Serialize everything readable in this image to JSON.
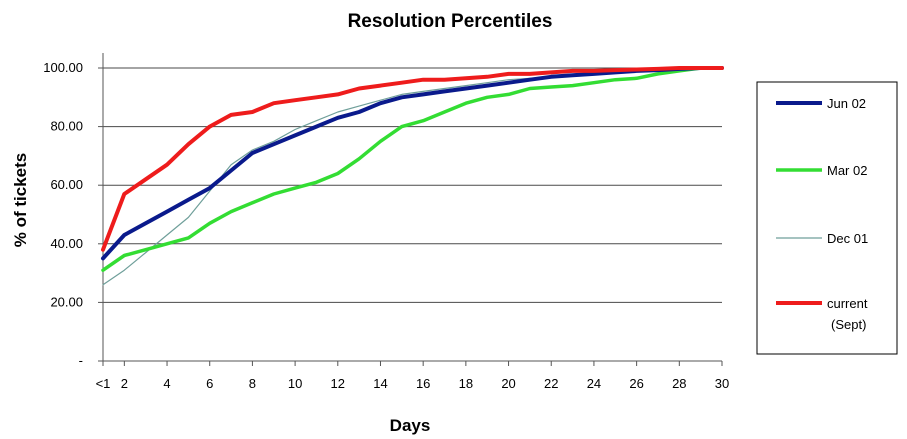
{
  "chart_data": {
    "type": "line",
    "title": "Resolution Percentiles",
    "xlabel": "Days",
    "ylabel": "% of tickets",
    "x_tick_labels": [
      "<1",
      "2",
      "4",
      "6",
      "8",
      "10",
      "12",
      "14",
      "16",
      "18",
      "20",
      "22",
      "24",
      "26",
      "28",
      "30"
    ],
    "x_tick_values": [
      1,
      2,
      4,
      6,
      8,
      10,
      12,
      14,
      16,
      18,
      20,
      22,
      24,
      26,
      28,
      30
    ],
    "y_tick_labels": [
      "-",
      "20.00",
      "40.00",
      "60.00",
      "80.00",
      "100.00"
    ],
    "y_tick_values": [
      0,
      20,
      40,
      60,
      80,
      100
    ],
    "xlim": [
      1,
      30
    ],
    "ylim": [
      0,
      100
    ],
    "grid": "horizontal",
    "legend_position": "right",
    "series": [
      {
        "name": "Jun 02",
        "color": "#0a1a8c",
        "x": [
          1,
          2,
          3,
          4,
          5,
          6,
          7,
          8,
          9,
          10,
          11,
          12,
          13,
          14,
          15,
          16,
          17,
          18,
          19,
          20,
          21,
          22,
          23,
          24,
          25,
          26,
          27,
          28,
          29,
          30
        ],
        "values": [
          35,
          43,
          47,
          51,
          55,
          59,
          65,
          71,
          74,
          77,
          80,
          83,
          85,
          88,
          90,
          91,
          92,
          93,
          94,
          95,
          96,
          97,
          97.5,
          98,
          98.5,
          99,
          99.3,
          99.7,
          100,
          100
        ]
      },
      {
        "name": "Mar 02",
        "color": "#33dd33",
        "x": [
          1,
          2,
          3,
          4,
          5,
          6,
          7,
          8,
          9,
          10,
          11,
          12,
          13,
          14,
          15,
          16,
          17,
          18,
          19,
          20,
          21,
          22,
          23,
          24,
          25,
          26,
          27,
          28,
          29,
          30
        ],
        "values": [
          31,
          36,
          38,
          40,
          42,
          47,
          51,
          54,
          57,
          59,
          61,
          64,
          69,
          75,
          80,
          82,
          85,
          88,
          90,
          91,
          93,
          93.5,
          94,
          95,
          96,
          96.5,
          98,
          99,
          100,
          100
        ]
      },
      {
        "name": "Dec 01",
        "color": "#6f9f9a",
        "x": [
          1,
          2,
          3,
          4,
          5,
          6,
          7,
          8,
          9,
          10,
          11,
          12,
          13,
          14,
          15,
          16,
          17,
          18,
          19,
          20,
          21,
          22,
          23,
          24,
          25,
          26,
          27,
          28,
          29,
          30
        ],
        "values": [
          26,
          31,
          37,
          43,
          49,
          58,
          67,
          72,
          75,
          79,
          82,
          85,
          87,
          89,
          91,
          92,
          93,
          94,
          95,
          96,
          96.5,
          97,
          97.5,
          98,
          98.5,
          99,
          99.3,
          99.7,
          100,
          100
        ]
      },
      {
        "name": "current\n(Sept)",
        "color": "#ee1c1c",
        "x": [
          1,
          2,
          3,
          4,
          5,
          6,
          7,
          8,
          9,
          10,
          11,
          12,
          13,
          14,
          15,
          16,
          17,
          18,
          19,
          20,
          21,
          22,
          23,
          24,
          25,
          26,
          27,
          28,
          29,
          30
        ],
        "values": [
          38,
          57,
          62,
          67,
          74,
          80,
          84,
          85,
          88,
          89,
          90,
          91,
          93,
          94,
          95,
          96,
          96,
          96.5,
          97,
          98,
          98,
          98.5,
          99,
          99,
          99.3,
          99.5,
          99.7,
          100,
          100,
          100
        ]
      }
    ]
  }
}
